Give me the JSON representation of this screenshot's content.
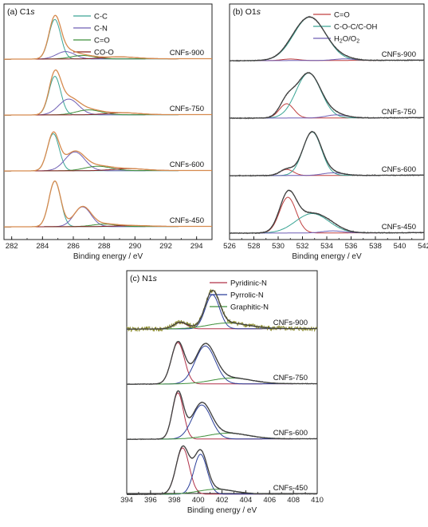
{
  "chart_data": [
    {
      "type": "line",
      "panel": "(a) C1s",
      "panel_prefix": "(a) C1",
      "panel_suffix": "s",
      "xlabel": "Binding energy / eV",
      "xlim": [
        281.5,
        295
      ],
      "x_ticks": [
        282,
        284,
        286,
        288,
        290,
        292,
        294
      ],
      "legend": [
        "C-C",
        "C-N",
        "C=O",
        "CO-O"
      ],
      "legend_colors": [
        "#3aa595",
        "#6f5fb5",
        "#3f8f3a",
        "#8a1f1f"
      ],
      "envelope_color": "#d68a4e",
      "spectra": [
        {
          "sample": "CNFs-900",
          "components": [
            {
              "name": "C-C",
              "center": 284.8,
              "height": 0.8,
              "fwhm": 0.9
            },
            {
              "name": "C-N",
              "center": 285.5,
              "height": 0.15,
              "fwhm": 1.4
            },
            {
              "name": "C=O",
              "center": 286.6,
              "height": 0.07,
              "fwhm": 1.8
            },
            {
              "name": "CO-O",
              "center": 289.0,
              "height": 0.04,
              "fwhm": 2.5
            }
          ]
        },
        {
          "sample": "CNFs-750",
          "components": [
            {
              "name": "C-C",
              "center": 284.8,
              "height": 0.78,
              "fwhm": 0.9
            },
            {
              "name": "C-N",
              "center": 285.7,
              "height": 0.32,
              "fwhm": 1.5
            },
            {
              "name": "C=O",
              "center": 287.0,
              "height": 0.1,
              "fwhm": 1.9
            },
            {
              "name": "CO-O",
              "center": 289.2,
              "height": 0.04,
              "fwhm": 2.5
            }
          ]
        },
        {
          "sample": "CNFs-600",
          "components": [
            {
              "name": "C-C",
              "center": 284.7,
              "height": 0.75,
              "fwhm": 0.9
            },
            {
              "name": "C-N",
              "center": 286.1,
              "height": 0.38,
              "fwhm": 1.5
            },
            {
              "name": "C=O",
              "center": 287.6,
              "height": 0.09,
              "fwhm": 2.0
            },
            {
              "name": "CO-O",
              "center": 289.6,
              "height": 0.04,
              "fwhm": 2.5
            }
          ]
        },
        {
          "sample": "CNFs-450",
          "components": [
            {
              "name": "C-C",
              "center": 284.8,
              "height": 0.92,
              "fwhm": 0.9
            },
            {
              "name": "C-N",
              "center": 286.6,
              "height": 0.4,
              "fwhm": 1.3
            },
            {
              "name": "C=O",
              "center": 288.0,
              "height": 0.05,
              "fwhm": 1.8
            },
            {
              "name": "CO-O",
              "center": 289.8,
              "height": 0.02,
              "fwhm": 2.5
            }
          ]
        }
      ]
    },
    {
      "type": "line",
      "panel": "(b) O1s",
      "panel_prefix": "(b) O1",
      "panel_suffix": "s",
      "xlabel": "Binding energy / eV",
      "xlim": [
        526,
        542
      ],
      "x_ticks": [
        526,
        528,
        530,
        532,
        534,
        536,
        538,
        540,
        542
      ],
      "legend": [
        "C=O",
        "C-O-C/C-OH",
        "H2O/O2"
      ],
      "legend_colors": [
        "#c04040",
        "#3aa595",
        "#6f5fb5"
      ],
      "envelope_color": "#404040",
      "spectra": [
        {
          "sample": "CNFs-900",
          "components": [
            {
              "name": "C=O",
              "center": 531.0,
              "height": 0.03,
              "fwhm": 1.6
            },
            {
              "name": "C-O-C/C-OH",
              "center": 532.6,
              "height": 0.85,
              "fwhm": 3.1
            },
            {
              "name": "H2O/O2",
              "center": 535.5,
              "height": 0.03,
              "fwhm": 2.0
            }
          ]
        },
        {
          "sample": "CNFs-750",
          "components": [
            {
              "name": "C=O",
              "center": 530.7,
              "height": 0.28,
              "fwhm": 1.4
            },
            {
              "name": "C-O-C/C-OH",
              "center": 532.5,
              "height": 0.88,
              "fwhm": 2.4
            },
            {
              "name": "H2O/O2",
              "center": 534.8,
              "height": 0.06,
              "fwhm": 2.0
            }
          ]
        },
        {
          "sample": "CNFs-600",
          "components": [
            {
              "name": "C=O",
              "center": 530.7,
              "height": 0.12,
              "fwhm": 1.3
            },
            {
              "name": "C-O-C/C-OH",
              "center": 532.8,
              "height": 0.85,
              "fwhm": 1.8
            },
            {
              "name": "H2O/O2",
              "center": 534.5,
              "height": 0.05,
              "fwhm": 2.0
            }
          ]
        },
        {
          "sample": "CNFs-450",
          "components": [
            {
              "name": "C=O",
              "center": 530.8,
              "height": 0.7,
              "fwhm": 1.6
            },
            {
              "name": "C-O-C/C-OH",
              "center": 532.8,
              "height": 0.38,
              "fwhm": 3.2
            },
            {
              "name": "H2O/O2",
              "center": 534.5,
              "height": 0.04,
              "fwhm": 2.0
            }
          ]
        }
      ]
    },
    {
      "type": "line",
      "panel": "(c) N1s",
      "panel_prefix": "(c) N1",
      "panel_suffix": "s",
      "xlabel": "Binding energy / eV",
      "xlim": [
        394,
        410
      ],
      "x_ticks": [
        394,
        396,
        398,
        400,
        402,
        404,
        406,
        408,
        410
      ],
      "legend": [
        "Pyridinic-N",
        "Pyrrolic-N",
        "Graphitic-N"
      ],
      "legend_colors": [
        "#b03048",
        "#2b3f9a",
        "#3f8f3a"
      ],
      "envelope_color": "#404040",
      "spectra": [
        {
          "sample": "CNFs-900",
          "components": [
            {
              "name": "Pyridinic-N",
              "center": 398.5,
              "height": 0.13,
              "fwhm": 1.3
            },
            {
              "name": "Pyrrolic-N",
              "center": 401.2,
              "height": 0.7,
              "fwhm": 1.4
            },
            {
              "name": "Graphitic-N",
              "center": 402.5,
              "height": 0.12,
              "fwhm": 4.0
            }
          ]
        },
        {
          "sample": "CNFs-750",
          "components": [
            {
              "name": "Pyridinic-N",
              "center": 398.3,
              "height": 0.85,
              "fwhm": 1.3
            },
            {
              "name": "Pyrrolic-N",
              "center": 400.6,
              "height": 0.78,
              "fwhm": 2.0
            },
            {
              "name": "Graphitic-N",
              "center": 402.8,
              "height": 0.12,
              "fwhm": 4.0
            }
          ]
        },
        {
          "sample": "CNFs-600",
          "components": [
            {
              "name": "Pyridinic-N",
              "center": 398.3,
              "height": 0.95,
              "fwhm": 1.1
            },
            {
              "name": "Pyrrolic-N",
              "center": 400.3,
              "height": 0.7,
              "fwhm": 1.9
            },
            {
              "name": "Graphitic-N",
              "center": 402.5,
              "height": 0.12,
              "fwhm": 4.0
            }
          ]
        },
        {
          "sample": "CNFs-450",
          "components": [
            {
              "name": "Pyridinic-N",
              "center": 398.7,
              "height": 0.95,
              "fwhm": 1.3
            },
            {
              "name": "Pyrrolic-N",
              "center": 400.2,
              "height": 0.82,
              "fwhm": 1.3
            },
            {
              "name": "Graphitic-N",
              "center": 401.5,
              "height": 0.1,
              "fwhm": 3.5
            }
          ]
        }
      ]
    }
  ]
}
